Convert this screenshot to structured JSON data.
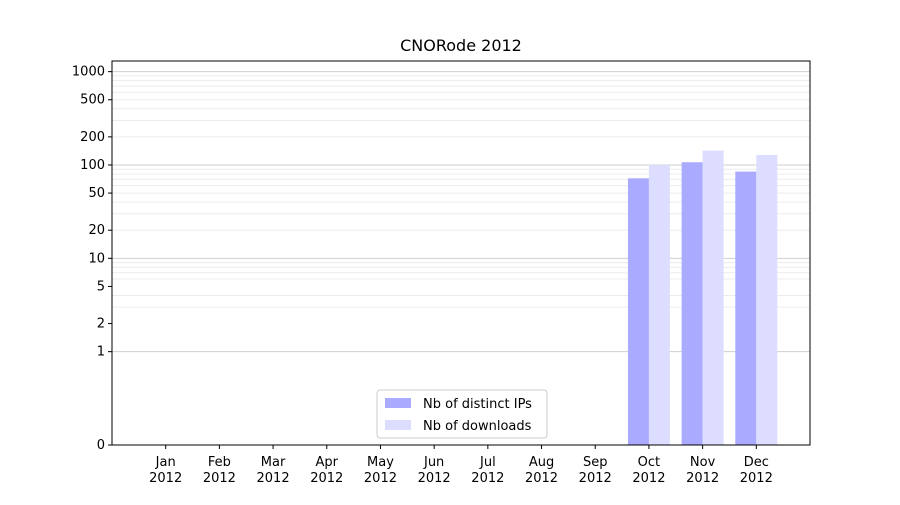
{
  "chart_data": {
    "type": "bar",
    "title": "CNORode 2012",
    "xlabel": "",
    "ylabel": "",
    "scale": "symlog",
    "categories": [
      "Jan\n2012",
      "Feb\n2012",
      "Mar\n2012",
      "Apr\n2012",
      "May\n2012",
      "Jun\n2012",
      "Jul\n2012",
      "Aug\n2012",
      "Sep\n2012",
      "Oct\n2012",
      "Nov\n2012",
      "Dec\n2012"
    ],
    "yticks": [
      {
        "value": 0,
        "label": "0"
      },
      {
        "value": 1,
        "label": "1"
      },
      {
        "value": 2,
        "label": "2"
      },
      {
        "value": 5,
        "label": "5"
      },
      {
        "value": 10,
        "label": "10"
      },
      {
        "value": 20,
        "label": "20"
      },
      {
        "value": 50,
        "label": "50"
      },
      {
        "value": 100,
        "label": "100"
      },
      {
        "value": 200,
        "label": "200"
      },
      {
        "value": 500,
        "label": "500"
      },
      {
        "value": 1000,
        "label": "1000"
      }
    ],
    "ylim": [
      0,
      1300
    ],
    "grid": true,
    "legend_position": "lower-center",
    "series": [
      {
        "name": "Nb of distinct IPs",
        "color": "#aaaaff",
        "values": [
          0,
          0,
          0,
          0,
          0,
          0,
          0,
          0,
          0,
          72,
          107,
          85
        ]
      },
      {
        "name": "Nb of downloads",
        "color": "#ddddff",
        "values": [
          0,
          0,
          0,
          0,
          0,
          0,
          0,
          0,
          0,
          100,
          143,
          128
        ]
      }
    ]
  }
}
